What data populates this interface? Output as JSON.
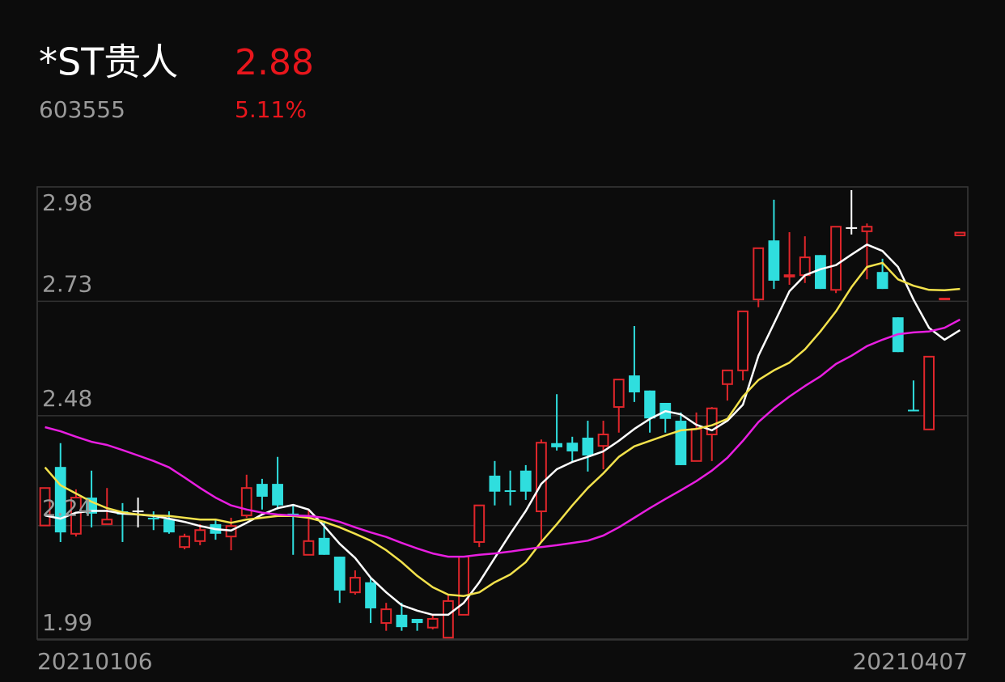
{
  "header": {
    "name": "*ST贵人",
    "price": "2.88",
    "code": "603555",
    "change": "5.11%"
  },
  "chart_data": {
    "type": "candlestick",
    "categories": [
      "20210106",
      null,
      null,
      null,
      null,
      null,
      null,
      null,
      null,
      null,
      null,
      null,
      null,
      null,
      null,
      null,
      null,
      null,
      null,
      null,
      null,
      null,
      null,
      null,
      null,
      null,
      null,
      null,
      null,
      null,
      null,
      null,
      null,
      null,
      null,
      null,
      null,
      null,
      null,
      null,
      null,
      null,
      null,
      null,
      null,
      null,
      null,
      null,
      null,
      null,
      null,
      null,
      null,
      null,
      null,
      null,
      null,
      null,
      null,
      "20210407"
    ],
    "open": [
      2.24,
      2.368,
      2.222,
      2.301,
      2.243,
      2.271,
      2.271,
      2.257,
      2.254,
      2.193,
      2.206,
      2.243,
      2.216,
      2.262,
      2.331,
      2.331,
      2.266,
      2.176,
      2.213,
      2.172,
      2.094,
      2.116,
      2.027,
      2.045,
      2.036,
      2.017,
      1.995,
      2.045,
      2.204,
      2.349,
      2.317,
      2.36,
      2.271,
      2.42,
      2.421,
      2.432,
      2.414,
      2.499,
      2.568,
      2.535,
      2.508,
      2.469,
      2.381,
      2.439,
      2.549,
      2.579,
      2.734,
      2.863,
      2.784,
      2.787,
      2.831,
      2.755,
      2.89,
      2.883,
      2.794,
      2.695,
      2.493,
      2.45,
      2.734,
      2.874
    ],
    "high": [
      2.322,
      2.42,
      2.319,
      2.36,
      2.322,
      2.289,
      2.301,
      2.271,
      2.271,
      2.222,
      2.243,
      2.253,
      2.257,
      2.351,
      2.342,
      2.39,
      2.284,
      2.275,
      2.248,
      2.172,
      2.142,
      2.124,
      2.071,
      2.071,
      2.036,
      2.045,
      2.089,
      2.172,
      2.284,
      2.381,
      2.36,
      2.372,
      2.428,
      2.527,
      2.434,
      2.469,
      2.469,
      2.559,
      2.676,
      2.535,
      2.508,
      2.487,
      2.487,
      2.499,
      2.579,
      2.708,
      2.846,
      2.952,
      2.881,
      2.872,
      2.831,
      2.893,
      2.973,
      2.9,
      2.823,
      2.695,
      2.557,
      2.609,
      2.736,
      2.88
    ],
    "low": [
      2.24,
      2.204,
      2.216,
      2.236,
      2.243,
      2.204,
      2.236,
      2.23,
      2.222,
      2.188,
      2.197,
      2.209,
      2.186,
      2.257,
      2.275,
      2.275,
      2.176,
      2.176,
      2.176,
      2.071,
      2.089,
      2.027,
      2.01,
      2.01,
      2.01,
      2.013,
      1.995,
      2.045,
      2.193,
      2.284,
      2.284,
      2.296,
      2.204,
      2.404,
      2.381,
      2.358,
      2.363,
      2.443,
      2.51,
      2.443,
      2.443,
      2.372,
      2.381,
      2.381,
      2.513,
      2.557,
      2.717,
      2.757,
      2.766,
      2.77,
      2.757,
      2.748,
      2.876,
      2.778,
      2.757,
      2.619,
      2.49,
      2.45,
      2.734,
      2.874
    ],
    "close": [
      2.322,
      2.225,
      2.301,
      2.266,
      2.253,
      2.264,
      2.271,
      2.254,
      2.225,
      2.216,
      2.23,
      2.222,
      2.239,
      2.322,
      2.303,
      2.284,
      2.262,
      2.206,
      2.176,
      2.098,
      2.126,
      2.059,
      2.057,
      2.018,
      2.027,
      2.036,
      2.075,
      2.172,
      2.284,
      2.314,
      2.314,
      2.314,
      2.421,
      2.411,
      2.402,
      2.393,
      2.439,
      2.559,
      2.531,
      2.474,
      2.473,
      2.372,
      2.451,
      2.496,
      2.579,
      2.708,
      2.846,
      2.775,
      2.787,
      2.826,
      2.757,
      2.893,
      2.89,
      2.893,
      2.757,
      2.619,
      2.49,
      2.609,
      2.736,
      2.88
    ],
    "up_color": "#e0262b",
    "down_color": "#2fdede",
    "flat_color": "#ffffff",
    "series": [
      {
        "color": "#ffffff",
        "values": [
          2.262,
          2.255,
          2.268,
          2.272,
          2.272,
          2.266,
          2.264,
          2.261,
          2.255,
          2.248,
          2.239,
          2.232,
          2.229,
          2.246,
          2.264,
          2.278,
          2.285,
          2.275,
          2.239,
          2.2,
          2.169,
          2.126,
          2.094,
          2.066,
          2.054,
          2.045,
          2.045,
          2.071,
          2.116,
          2.169,
          2.222,
          2.272,
          2.331,
          2.363,
          2.379,
          2.39,
          2.402,
          2.425,
          2.451,
          2.473,
          2.49,
          2.483,
          2.46,
          2.448,
          2.469,
          2.504,
          2.611,
          2.681,
          2.752,
          2.787,
          2.8,
          2.809,
          2.832,
          2.854,
          2.84,
          2.805,
          2.734,
          2.672,
          2.646,
          2.667
        ]
      },
      {
        "color": "#f3e24c",
        "values": [
          2.367,
          2.328,
          2.31,
          2.292,
          2.278,
          2.269,
          2.264,
          2.262,
          2.261,
          2.257,
          2.253,
          2.253,
          2.246,
          2.253,
          2.257,
          2.261,
          2.261,
          2.257,
          2.248,
          2.236,
          2.222,
          2.207,
          2.186,
          2.16,
          2.13,
          2.105,
          2.089,
          2.086,
          2.094,
          2.116,
          2.133,
          2.16,
          2.204,
          2.243,
          2.284,
          2.322,
          2.354,
          2.39,
          2.413,
          2.425,
          2.437,
          2.448,
          2.451,
          2.459,
          2.473,
          2.522,
          2.558,
          2.579,
          2.596,
          2.625,
          2.664,
          2.708,
          2.761,
          2.805,
          2.814,
          2.778,
          2.764,
          2.755,
          2.754,
          2.757
        ]
      },
      {
        "color": "#e81ee0",
        "values": [
          2.455,
          2.446,
          2.434,
          2.423,
          2.416,
          2.405,
          2.393,
          2.381,
          2.367,
          2.345,
          2.322,
          2.301,
          2.284,
          2.275,
          2.268,
          2.264,
          2.262,
          2.261,
          2.257,
          2.248,
          2.236,
          2.225,
          2.215,
          2.202,
          2.19,
          2.179,
          2.172,
          2.172,
          2.176,
          2.179,
          2.183,
          2.188,
          2.193,
          2.197,
          2.202,
          2.207,
          2.218,
          2.236,
          2.257,
          2.278,
          2.298,
          2.317,
          2.337,
          2.36,
          2.388,
          2.425,
          2.466,
          2.496,
          2.522,
          2.545,
          2.566,
          2.593,
          2.611,
          2.632,
          2.646,
          2.658,
          2.662,
          2.664,
          2.672,
          2.69
        ]
      }
    ],
    "ylim": [
      1.99,
      2.98
    ],
    "yticks": [
      2.98,
      2.73,
      2.48,
      2.24,
      1.99
    ],
    "grid": true
  }
}
